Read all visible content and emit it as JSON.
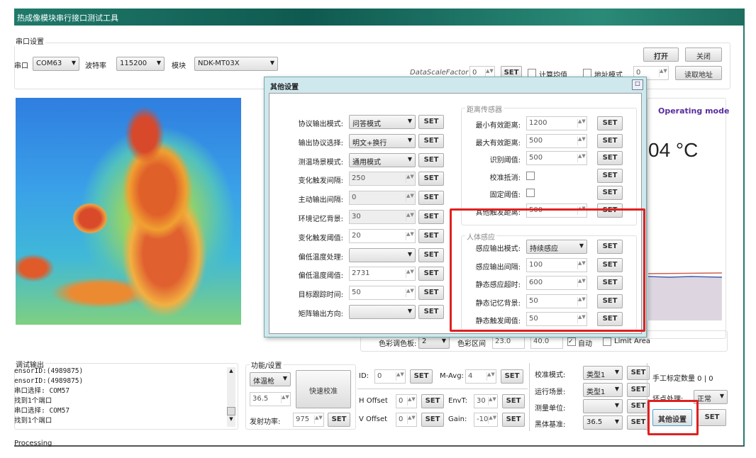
{
  "app": {
    "title": "热成像模块串行接口测试工具"
  },
  "serial": {
    "group": "串口设置",
    "port_label": "串口",
    "port": "COM63",
    "baud_label": "波特率",
    "baud": "115200",
    "module_label": "模块",
    "module": "NDK-MT03X",
    "open": "打开",
    "close": "关闭",
    "scale_label": "DataScaleFactor",
    "scale_value": "0",
    "set": "SET",
    "calc_mean": "计算均值",
    "addr_mode": "地址模式",
    "addr_value": "0",
    "read_addr": "读取地址"
  },
  "right_panel": {
    "operating_mode": "Operating mode",
    "temperature": "04 °C"
  },
  "palette_row": {
    "palette_label": "色彩调色板:",
    "palette": "2",
    "range_label": "色彩区间",
    "min": "23.0",
    "max": "40.0",
    "auto": "自动",
    "limit": "Limit Area"
  },
  "dialog": {
    "title": "其他设置",
    "set": "SET",
    "left_rows": [
      {
        "label": "协议输出模式:",
        "type": "select",
        "value": "问答模式"
      },
      {
        "label": "输出协议选择:",
        "type": "select",
        "value": "明文+换行"
      },
      {
        "label": "测温场景模式:",
        "type": "select",
        "value": "通用模式"
      },
      {
        "label": "变化触发间隔:",
        "type": "spin",
        "value": "250",
        "disabled": true
      },
      {
        "label": "主动输出间隔:",
        "type": "spin",
        "value": "0",
        "disabled": true
      },
      {
        "label": "环境记忆背景:",
        "type": "spin",
        "value": "30",
        "disabled": true
      },
      {
        "label": "变化触发阈值:",
        "type": "spin",
        "value": "20"
      },
      {
        "label": "偏低温度处理:",
        "type": "select",
        "value": ""
      },
      {
        "label": "偏低温度阈值:",
        "type": "spin",
        "value": "2731"
      },
      {
        "label": "目标跟踪时间:",
        "type": "spin",
        "value": "50"
      },
      {
        "label": "矩阵输出方向:",
        "type": "select",
        "value": ""
      }
    ],
    "distance_group": "距离传感器",
    "distance_rows": [
      {
        "label": "最小有效距离:",
        "type": "spin",
        "value": "1200"
      },
      {
        "label": "最大有效距离:",
        "type": "spin",
        "value": "500"
      },
      {
        "label": "识别阈值:",
        "type": "spin",
        "value": "500"
      },
      {
        "label": "校准抵消:",
        "type": "check",
        "value": ""
      },
      {
        "label": "固定阈值:",
        "type": "check",
        "value": ""
      },
      {
        "label": "其他触发距离:",
        "type": "spin",
        "value": "500"
      }
    ],
    "human_group": "人体感应",
    "human_rows": [
      {
        "label": "感应输出模式:",
        "type": "select",
        "value": "持续感应"
      },
      {
        "label": "感应输出间隔:",
        "type": "spin",
        "value": "100"
      },
      {
        "label": "静态感应超时:",
        "type": "spin",
        "value": "600"
      },
      {
        "label": "静态记忆背景:",
        "type": "spin",
        "value": "50"
      },
      {
        "label": "静态触发阈值:",
        "type": "spin",
        "value": "50"
      }
    ]
  },
  "log": {
    "group": "调试输出",
    "lines": [
      "ensorID:(4989875)",
      "ensorID:(4989875)",
      "串口选择: COM57",
      "找到1个端口",
      "串口选择: COM57",
      "找到1个端口"
    ]
  },
  "processing": {
    "label": "Processing"
  },
  "func": {
    "group": "功能/设置",
    "mode": "体温枪",
    "temp": "36.5",
    "quick_cal": "快速校准",
    "power_label": "发射功率:",
    "power": "975",
    "set": "SET"
  },
  "params": {
    "id_label": "ID:",
    "id": "0",
    "mavg_label": "M-Avg:",
    "mavg": "4",
    "hoff_label": "H Offset",
    "hoff": "0",
    "envt_label": "EnvT:",
    "envt": "30",
    "voff_label": "V Offset",
    "voff": "0",
    "gain_label": "Gain:",
    "gain": "-10",
    "set": "SET"
  },
  "calib": {
    "cal_mode_label": "校准模式:",
    "cal_mode": "类型1",
    "scene_label": "运行场景:",
    "scene": "类型1",
    "unit_label": "测量单位:",
    "unit": "",
    "bb_label": "黑体基准:",
    "bb": "36.5",
    "set": "SET"
  },
  "misc": {
    "manual_count": "手工标定数量 0 | 0",
    "bad_pixel_label": "坏点处理:",
    "bad_pixel": "正常",
    "other_settings": "其他设置",
    "set": "SET"
  },
  "colors": {
    "accent": "#1f7a6a",
    "highlight": "#e02020",
    "mode_text": "#5a2ca0"
  }
}
